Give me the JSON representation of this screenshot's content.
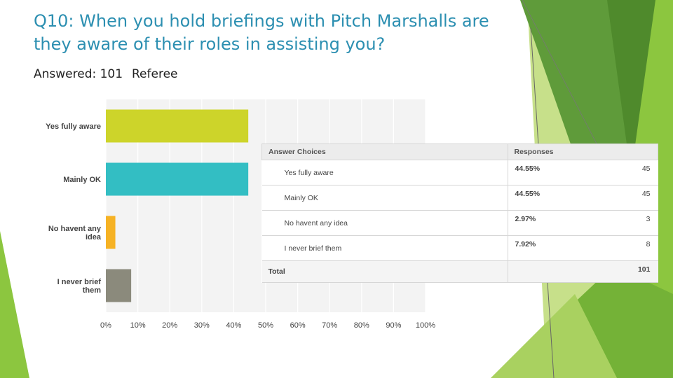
{
  "slide": {
    "title": "Q10: When you hold briefings with Pitch Marshalls are they aware of their roles in assisting you?",
    "answered": "Answered: 101",
    "group": "Referee"
  },
  "colors": {
    "title": "#2c8fb1",
    "bar_yes": "#cdd42a",
    "bar_mainly": "#33bec3",
    "bar_none": "#f6b224",
    "bar_never": "#8b8a7c",
    "deco_light": "#c7e08a",
    "deco_mid": "#8cc63f",
    "deco_dark": "#4f8a2c"
  },
  "chart_data": {
    "type": "bar",
    "orientation": "horizontal",
    "categories": [
      "Yes fully aware",
      "Mainly OK",
      "No havent any idea",
      "I never brief them"
    ],
    "values": [
      44.55,
      44.55,
      2.97,
      7.92
    ],
    "xlim": [
      0,
      100
    ],
    "xticks": [
      "0%",
      "10%",
      "20%",
      "30%",
      "40%",
      "50%",
      "60%",
      "70%",
      "80%",
      "90%",
      "100%"
    ],
    "grid": true,
    "legend": "none"
  },
  "table": {
    "headers": [
      "Answer Choices",
      "Responses"
    ],
    "rows": [
      {
        "choice": "Yes fully aware",
        "percent": "44.55%",
        "count": "45"
      },
      {
        "choice": "Mainly OK",
        "percent": "44.55%",
        "count": "45"
      },
      {
        "choice": "No havent any idea",
        "percent": "2.97%",
        "count": "3"
      },
      {
        "choice": "I never brief them",
        "percent": "7.92%",
        "count": "8"
      }
    ],
    "total_label": "Total",
    "total_value": "101"
  }
}
